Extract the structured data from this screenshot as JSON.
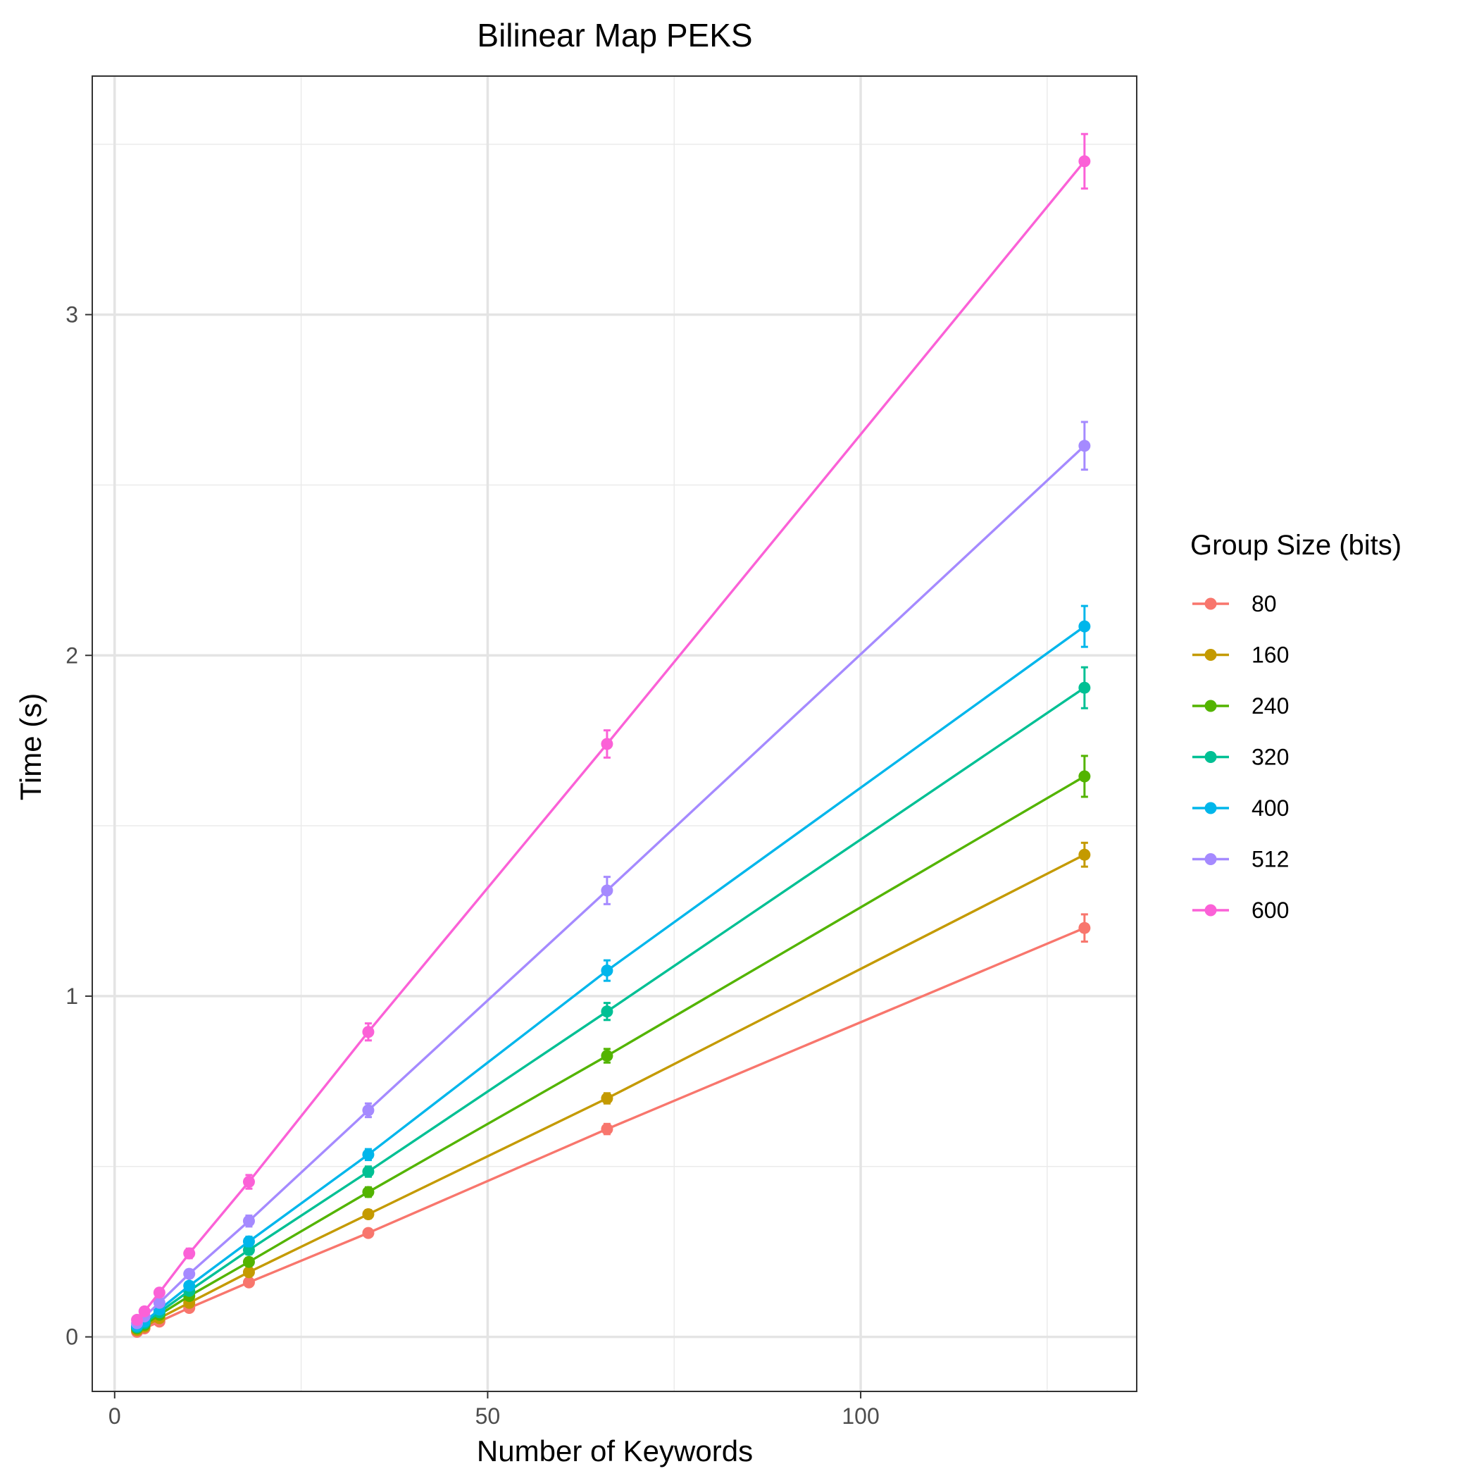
{
  "chart_data": {
    "type": "line",
    "title": "Bilinear Map PEKS",
    "xlabel": "Number of Keywords",
    "ylabel": "Time (s)",
    "xlim": [
      -3,
      137
    ],
    "ylim": [
      -0.16,
      3.7
    ],
    "x_ticks": [
      0,
      50,
      100
    ],
    "y_ticks": [
      0,
      1,
      2,
      3
    ],
    "grid": true,
    "legend": {
      "title": "Group Size (bits)",
      "position": "right"
    },
    "x": [
      3,
      4,
      6,
      10,
      18,
      34,
      66,
      130
    ],
    "series": [
      {
        "name": "80",
        "color": "#F8766D",
        "values": [
          0.015,
          0.025,
          0.045,
          0.085,
          0.16,
          0.305,
          0.61,
          1.2
        ],
        "error": [
          0.005,
          0.005,
          0.006,
          0.008,
          0.01,
          0.01,
          0.015,
          0.04
        ]
      },
      {
        "name": "160",
        "color": "#C49A00",
        "values": [
          0.02,
          0.03,
          0.055,
          0.1,
          0.19,
          0.36,
          0.7,
          1.415
        ],
        "error": [
          0.005,
          0.005,
          0.006,
          0.008,
          0.01,
          0.012,
          0.015,
          0.035
        ]
      },
      {
        "name": "240",
        "color": "#53B400",
        "values": [
          0.025,
          0.035,
          0.065,
          0.12,
          0.22,
          0.425,
          0.825,
          1.645
        ],
        "error": [
          0.005,
          0.006,
          0.007,
          0.009,
          0.012,
          0.014,
          0.02,
          0.06
        ]
      },
      {
        "name": "320",
        "color": "#00C094",
        "values": [
          0.028,
          0.04,
          0.072,
          0.135,
          0.255,
          0.485,
          0.955,
          1.905
        ],
        "error": [
          0.005,
          0.006,
          0.007,
          0.01,
          0.013,
          0.015,
          0.025,
          0.06
        ]
      },
      {
        "name": "400",
        "color": "#00B6EB",
        "values": [
          0.032,
          0.045,
          0.08,
          0.15,
          0.28,
          0.535,
          1.075,
          2.085
        ],
        "error": [
          0.005,
          0.006,
          0.008,
          0.011,
          0.014,
          0.016,
          0.03,
          0.06
        ]
      },
      {
        "name": "512",
        "color": "#A58AFF",
        "values": [
          0.04,
          0.06,
          0.1,
          0.185,
          0.34,
          0.665,
          1.31,
          2.615
        ],
        "error": [
          0.005,
          0.007,
          0.009,
          0.012,
          0.016,
          0.02,
          0.04,
          0.07
        ]
      },
      {
        "name": "600",
        "color": "#FB61D7",
        "values": [
          0.05,
          0.075,
          0.13,
          0.245,
          0.455,
          0.895,
          1.74,
          3.45
        ],
        "error": [
          0.006,
          0.008,
          0.01,
          0.014,
          0.02,
          0.025,
          0.04,
          0.08
        ]
      }
    ]
  }
}
